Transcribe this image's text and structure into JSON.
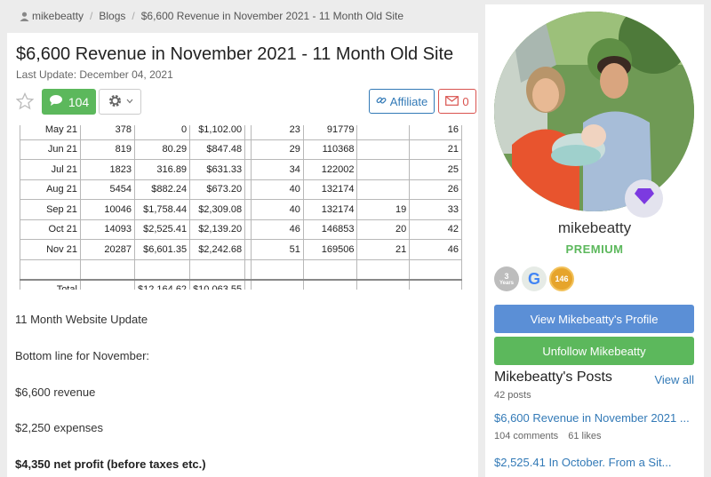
{
  "breadcrumb": {
    "user": "mikebeatty",
    "section": "Blogs",
    "current": "$6,600 Revenue in November 2021 - 11 Month Old Site"
  },
  "post": {
    "title": "$6,600 Revenue in November 2021 - 11 Month Old Site",
    "last_update": "Last Update: December 04, 2021",
    "comment_count": "104",
    "affiliate_label": "Affiliate",
    "mail_count": "0",
    "icons": {
      "star": "star-icon",
      "comment": "comment-icon",
      "settings": "gear-icon",
      "affiliate": "link-icon",
      "mail": "mail-icon"
    }
  },
  "table": {
    "partial_row": [
      "May 21",
      "378",
      "0",
      "$1,102.00",
      "",
      "23",
      "91779",
      "",
      "16"
    ],
    "rows": [
      [
        "Jun 21",
        "819",
        "80.29",
        "$847.48",
        "",
        "29",
        "110368",
        "",
        "21"
      ],
      [
        "Jul 21",
        "1823",
        "316.89",
        "$631.33",
        "",
        "34",
        "122002",
        "",
        "25"
      ],
      [
        "Aug 21",
        "5454",
        "$882.24",
        "$673.20",
        "",
        "40",
        "132174",
        "",
        "26"
      ],
      [
        "Sep 21",
        "10046",
        "$1,758.44",
        "$2,309.08",
        "",
        "40",
        "132174",
        "19",
        "33"
      ],
      [
        "Oct 21",
        "14093",
        "$2,525.41",
        "$2,139.20",
        "",
        "46",
        "146853",
        "20",
        "42"
      ],
      [
        "Nov 21",
        "20287",
        "$6,601.35",
        "$2,242.68",
        "",
        "51",
        "169506",
        "21",
        "46"
      ],
      [
        "",
        "",
        "",
        "",
        "",
        "",
        "",
        "",
        ""
      ],
      [
        "Total",
        "",
        "$12,164.62",
        "$10,063.55",
        "",
        "",
        "",
        "",
        ""
      ]
    ]
  },
  "body": {
    "line1": "11 Month Website Update",
    "line2": "Bottom line for November:",
    "line3": "$6,600 revenue",
    "line4": "$2,250 expenses",
    "line5": "$4,350 net profit (before taxes etc.)"
  },
  "sidebar": {
    "username": "mikebeatty",
    "status": "PREMIUM",
    "badges": [
      {
        "label": "3",
        "sub": "Years",
        "name": "years-badge"
      },
      {
        "label": "G",
        "name": "google-badge"
      },
      {
        "label": "146",
        "name": "count-badge"
      }
    ],
    "view_profile": "View Mikebeatty's Profile",
    "unfollow": "Unfollow Mikebeatty",
    "posts_heading": "Mikebeatty's Posts",
    "view_all": "View all",
    "post_count": "42 posts",
    "posts": [
      {
        "title": "$6,600 Revenue in November 2021 ...",
        "comments": "104 comments",
        "likes": "61 likes"
      },
      {
        "title": "$2,525.41 In October. From a Sit..."
      }
    ],
    "colors": {
      "primary": "#5b8fd6",
      "success": "#5cb85c",
      "danger": "#d9534f",
      "diamond": "#7c3ae0"
    }
  }
}
